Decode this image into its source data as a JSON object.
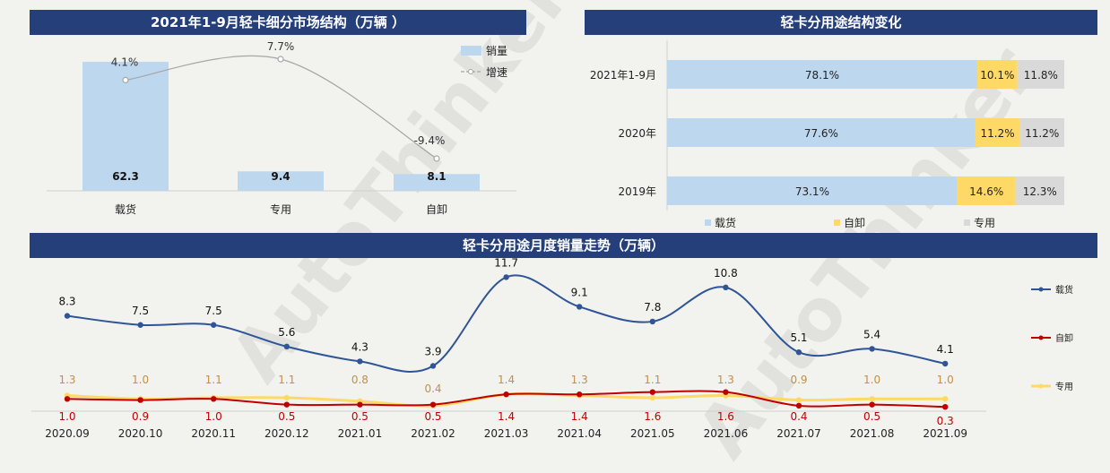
{
  "colors": {
    "banner": "#253f7a",
    "cargo": "#bdd7ee",
    "dump": "#ffd966",
    "special": "#d9d9d9",
    "line_cargo": "#2f5597",
    "line_dump": "#c00000",
    "line_special": "#ffd966",
    "growth": "#a6a6a6"
  },
  "watermark": "AutoThinker",
  "chart_data": [
    {
      "type": "bar",
      "title": "2021年1-9月轻卡细分市场结构（万辆 ）",
      "categories": [
        "载货",
        "专用",
        "自卸"
      ],
      "series": [
        {
          "name": "销量",
          "values": [
            62.3,
            9.4,
            8.1
          ],
          "labels": [
            "62.3",
            "9.4",
            "8.1"
          ]
        },
        {
          "name": "增速",
          "values": [
            4.1,
            7.7,
            -9.4
          ],
          "labels": [
            "4.1%",
            "7.7%",
            "-9.4%"
          ]
        }
      ]
    },
    {
      "type": "bar",
      "stacked": true,
      "orientation": "horizontal",
      "title": "轻卡分用途结构变化",
      "categories": [
        "2021年1-9月",
        "2020年",
        "2019年"
      ],
      "series": [
        {
          "name": "载货",
          "values": [
            78.1,
            77.6,
            73.1
          ],
          "labels": [
            "78.1%",
            "77.6%",
            "73.1%"
          ]
        },
        {
          "name": "自卸",
          "values": [
            10.1,
            11.2,
            14.6
          ],
          "labels": [
            "10.1%",
            "11.2%",
            "14.6%"
          ]
        },
        {
          "name": "专用",
          "values": [
            11.8,
            11.2,
            12.3
          ],
          "labels": [
            "11.8%",
            "11.2%",
            "12.3%"
          ]
        }
      ]
    },
    {
      "type": "line",
      "title": "轻卡分用途月度销量走势（万辆）",
      "categories": [
        "2020.09",
        "2020.10",
        "2020.11",
        "2020.12",
        "2021.01",
        "2021.02",
        "2021.03",
        "2021.04",
        "2021.05",
        "2021.06",
        "2021.07",
        "2021.08",
        "2021.09"
      ],
      "series": [
        {
          "name": "载货",
          "values": [
            8.3,
            7.5,
            7.5,
            5.6,
            4.3,
            3.9,
            11.7,
            9.1,
            7.8,
            10.8,
            5.1,
            5.4,
            4.1
          ]
        },
        {
          "name": "自卸",
          "values": [
            1.0,
            0.9,
            1.0,
            0.5,
            0.5,
            0.5,
            1.4,
            1.4,
            1.6,
            1.6,
            0.4,
            0.5,
            0.3
          ]
        },
        {
          "name": "专用",
          "values": [
            1.3,
            1.0,
            1.1,
            1.1,
            0.8,
            0.4,
            1.4,
            1.3,
            1.1,
            1.3,
            0.9,
            1.0,
            1.0
          ]
        }
      ]
    }
  ]
}
